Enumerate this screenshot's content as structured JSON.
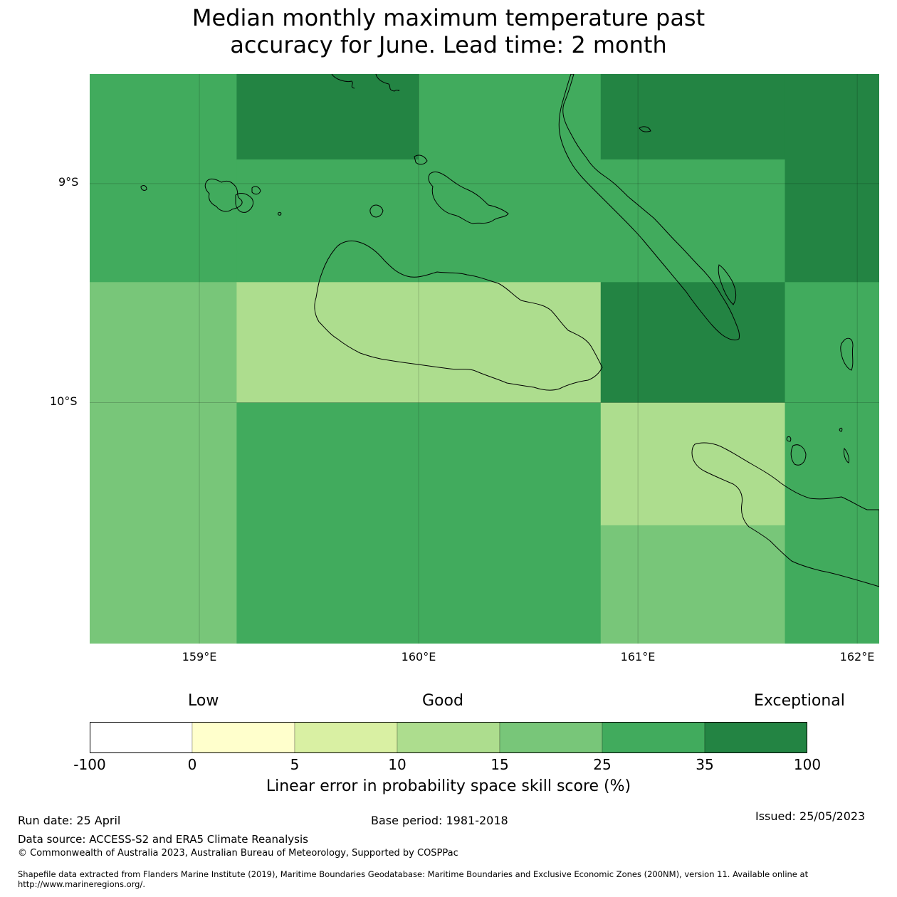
{
  "title": {
    "line1": "Median monthly maximum temperature past",
    "line2": "accuracy for June. Lead time: 2 month"
  },
  "map": {
    "lat_labels": [
      "9°S",
      "10°S"
    ],
    "lon_labels": [
      "159°E",
      "160°E",
      "161°E",
      "162°E"
    ],
    "extent": {
      "lon_min": 158.5,
      "lon_max": 162.1,
      "lat_min": -11.1,
      "lat_max": -8.5
    },
    "grid_lons": [
      159,
      160,
      161,
      162
    ],
    "grid_lats": [
      -9,
      -10
    ],
    "cells": [
      {
        "lon0": 158.5,
        "lon1": 159.17,
        "lat0": -8.5,
        "lat1": -9.45,
        "bin": 5
      },
      {
        "lon0": 159.17,
        "lon1": 160.0,
        "lat0": -8.5,
        "lat1": -8.89,
        "bin": 6
      },
      {
        "lon0": 159.17,
        "lon1": 160.0,
        "lat0": -8.89,
        "lat1": -9.45,
        "bin": 5
      },
      {
        "lon0": 160.0,
        "lon1": 160.83,
        "lat0": -8.5,
        "lat1": -9.45,
        "bin": 5
      },
      {
        "lon0": 160.83,
        "lon1": 161.67,
        "lat0": -8.5,
        "lat1": -8.89,
        "bin": 6
      },
      {
        "lon0": 160.83,
        "lon1": 161.67,
        "lat0": -8.89,
        "lat1": -9.45,
        "bin": 5
      },
      {
        "lon0": 161.67,
        "lon1": 162.1,
        "lat0": -8.5,
        "lat1": -9.45,
        "bin": 6
      },
      {
        "lon0": 158.5,
        "lon1": 159.17,
        "lat0": -9.45,
        "lat1": -11.1,
        "bin": 4
      },
      {
        "lon0": 159.17,
        "lon1": 160.83,
        "lat0": -9.45,
        "lat1": -10.0,
        "bin": 3
      },
      {
        "lon0": 160.83,
        "lon1": 161.67,
        "lat0": -9.45,
        "lat1": -10.0,
        "bin": 6
      },
      {
        "lon0": 161.67,
        "lon1": 162.1,
        "lat0": -9.45,
        "lat1": -10.0,
        "bin": 5
      },
      {
        "lon0": 159.17,
        "lon1": 160.83,
        "lat0": -10.0,
        "lat1": -11.1,
        "bin": 5
      },
      {
        "lon0": 160.83,
        "lon1": 161.67,
        "lat0": -10.0,
        "lat1": -10.56,
        "bin": 3
      },
      {
        "lon0": 160.83,
        "lon1": 161.67,
        "lat0": -10.56,
        "lat1": -11.1,
        "bin": 4
      },
      {
        "lon0": 161.67,
        "lon1": 162.1,
        "lat0": -10.0,
        "lat1": -11.1,
        "bin": 5
      }
    ]
  },
  "colorbar": {
    "categories": [
      "Low",
      "Good",
      "Exceptional"
    ],
    "ticks": [
      "-100",
      "0",
      "5",
      "10",
      "15",
      "25",
      "35",
      "100"
    ],
    "colors": [
      "#ffffff",
      "#ffffcc",
      "#d9f0a3",
      "#addd8e",
      "#78c679",
      "#41ab5d",
      "#238443"
    ],
    "label": "Linear error in probability space skill score (%)"
  },
  "footer": {
    "run_date": "Run date: 25 April",
    "base_period": "Base period: 1981-2018",
    "issued": "Issued: 25/05/2023",
    "data_source": "Data source: ACCESS-S2 and ERA5 Climate Reanalysis",
    "copyright": "© Commonwealth of Australia 2023, Australian Bureau of Meteorology, Supported by COSPPac",
    "shapefile": "Shapefile data extracted from Flanders Marine Institute (2019), Maritime Boundaries Geodatabase: Maritime Boundaries and Exclusive Economic Zones (200NM), version 11. Available online at http://www.marineregions.org/."
  }
}
